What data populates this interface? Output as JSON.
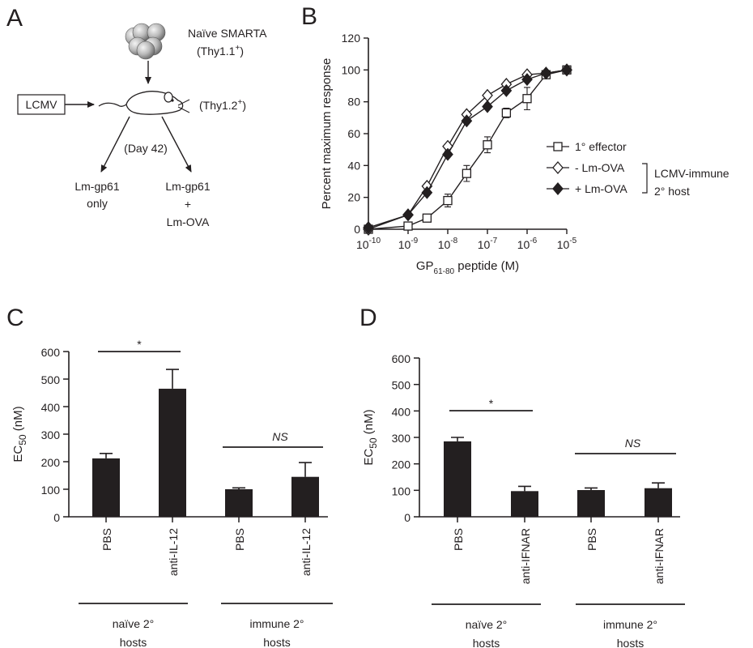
{
  "panels": {
    "a": "A",
    "b": "B",
    "c": "C",
    "d": "D"
  },
  "schematic": {
    "donor_line1": "Naïve SMARTA",
    "donor_line2_pre": "(Thy1.1",
    "donor_line2_sup": "+",
    "donor_line2_post": ")",
    "infection": "LCMV",
    "host_pre": "(Thy1.2",
    "host_sup": "+",
    "host_post": ")",
    "day": "(Day 42)",
    "left_arm_line1": "Lm-gp61",
    "left_arm_line2": "only",
    "right_arm_line1": "Lm-gp61",
    "right_arm_line2": "+",
    "right_arm_line3": "Lm-OVA"
  },
  "chart_data": [
    {
      "panel": "B",
      "type": "line",
      "xlabel_pre": "GP",
      "xlabel_sub": "61-80",
      "xlabel_post": " peptide (M)",
      "ylabel": "Percent maximum  response",
      "x_scale": "log",
      "xlim": [
        1e-10,
        1e-05
      ],
      "ylim": [
        0,
        120
      ],
      "yticks": [
        "0",
        "20",
        "40",
        "60",
        "80",
        "100",
        "120"
      ],
      "xticks": [
        {
          "base": "10",
          "exp": "-10"
        },
        {
          "base": "10",
          "exp": "-9"
        },
        {
          "base": "10",
          "exp": "-8"
        },
        {
          "base": "10",
          "exp": "-7"
        },
        {
          "base": "10",
          "exp": "-6"
        },
        {
          "base": "10",
          "exp": "-5"
        }
      ],
      "x": [
        1e-10,
        1e-09,
        3e-09,
        1e-08,
        3e-08,
        1e-07,
        3e-07,
        1e-06,
        3e-06,
        1e-05
      ],
      "series": [
        {
          "name": "1° effector",
          "marker": "open-square",
          "values": [
            0,
            2,
            7,
            18,
            35,
            53,
            73,
            82,
            97,
            100
          ],
          "errors": [
            0,
            1,
            2,
            4,
            5,
            5,
            3,
            7,
            2,
            0
          ]
        },
        {
          "name": "- Lm-OVA",
          "marker": "open-diamond",
          "values": [
            0,
            9,
            27,
            52,
            72,
            84,
            91,
            97,
            98,
            100
          ],
          "errors": [
            0,
            0,
            0,
            0,
            0,
            0,
            0,
            0,
            0,
            0
          ]
        },
        {
          "name": "+ Lm-OVA",
          "marker": "filled-diamond",
          "values": [
            1,
            9,
            23,
            47,
            68,
            77,
            87,
            94,
            98,
            100
          ],
          "errors": [
            0,
            0,
            0,
            0,
            0,
            0,
            0,
            0,
            0,
            0
          ]
        }
      ],
      "legend_group_line1": "LCMV-immune",
      "legend_group_line2": "2° host",
      "legend": "right"
    },
    {
      "panel": "C",
      "type": "bar",
      "ylabel_pre": "EC",
      "ylabel_sub": "50",
      "ylabel_post": " (nM)",
      "ylim": [
        0,
        600
      ],
      "yticks": [
        "0",
        "100",
        "200",
        "300",
        "400",
        "500",
        "600"
      ],
      "categories": [
        "PBS",
        "anti-IL-12",
        "PBS",
        "anti-IL-12"
      ],
      "values": [
        212,
        465,
        100,
        145
      ],
      "errors": [
        18,
        70,
        5,
        52
      ],
      "groups": [
        {
          "line1": "naïve 2°",
          "line2": "hosts"
        },
        {
          "line1": "immune 2°",
          "line2": "hosts"
        }
      ],
      "sig_left": "*",
      "sig_right": "NS"
    },
    {
      "panel": "D",
      "type": "bar",
      "ylabel_pre": "EC",
      "ylabel_sub": "50",
      "ylabel_post": " (nM)",
      "ylim": [
        0,
        600
      ],
      "yticks": [
        "0",
        "100",
        "200",
        "300",
        "400",
        "500",
        "600"
      ],
      "categories": [
        "PBS",
        "anti-IFNAR",
        "PBS",
        "anti-IFNAR"
      ],
      "values": [
        285,
        97,
        101,
        108
      ],
      "errors": [
        15,
        18,
        8,
        20
      ],
      "groups": [
        {
          "line1": "naïve 2°",
          "line2": "hosts"
        },
        {
          "line1": "immune 2°",
          "line2": "hosts"
        }
      ],
      "sig_left": "*",
      "sig_right": "NS"
    }
  ]
}
